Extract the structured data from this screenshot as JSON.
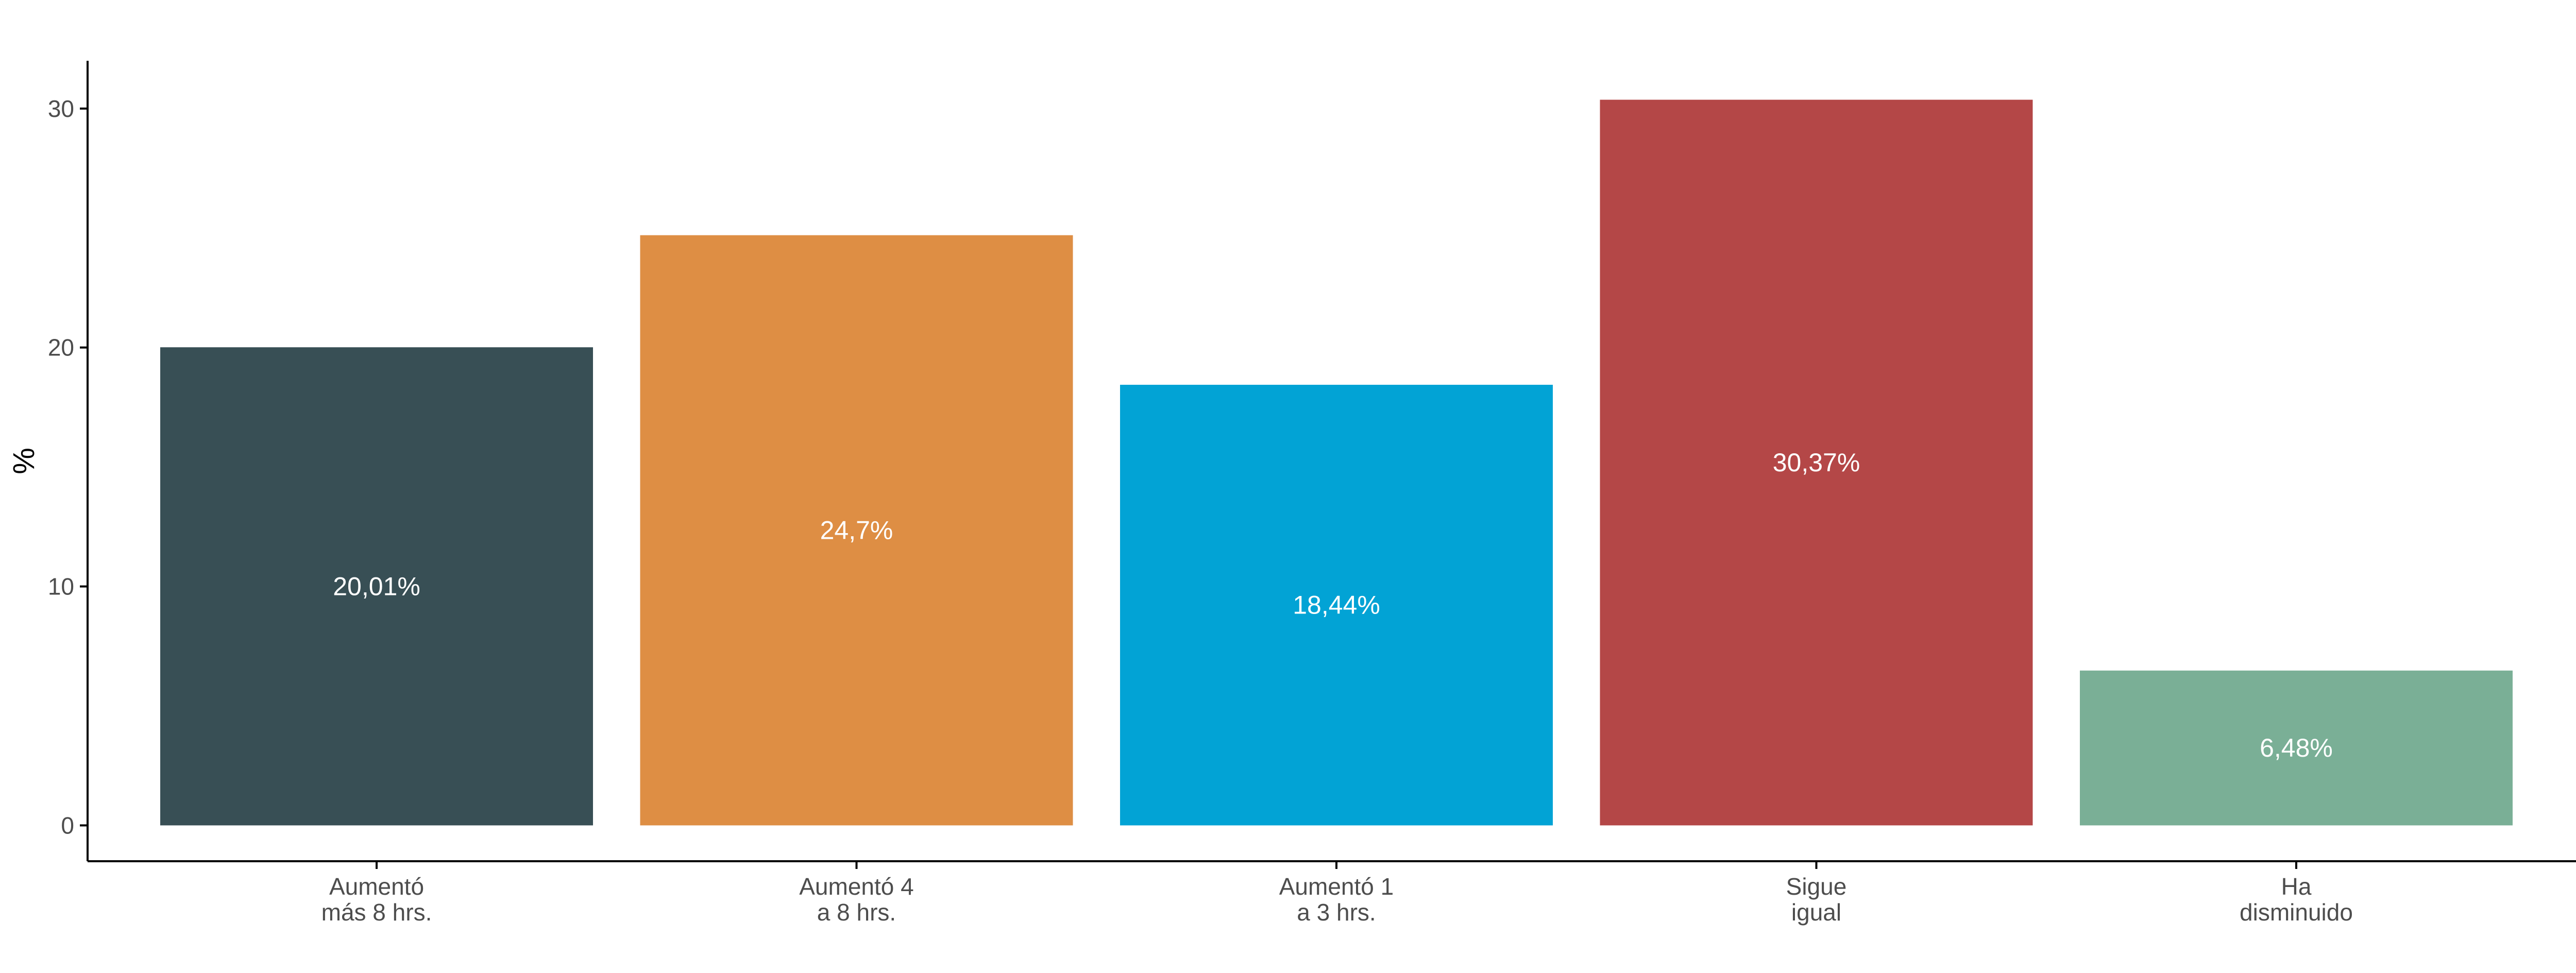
{
  "chart_data": {
    "type": "bar",
    "title": "",
    "xlabel": "",
    "ylabel": "%",
    "categories": [
      [
        "Aumentó",
        "más 8 hrs."
      ],
      [
        "Aumentó 4",
        "a 8 hrs."
      ],
      [
        "Aumentó 1",
        "a 3 hrs."
      ],
      [
        "Sigue",
        "igual"
      ],
      [
        "Ha",
        "disminuido"
      ]
    ],
    "values": [
      20.01,
      24.7,
      18.44,
      30.37,
      6.48
    ],
    "data_labels": [
      "20,01%",
      "24,7%",
      "18,44%",
      "30,37%",
      "6,48%"
    ],
    "colors": [
      "#384f55",
      "#de8e44",
      "#02a3d5",
      "#b44747",
      "#7aaf96"
    ],
    "ylim": [
      -1.5,
      32
    ],
    "yticks": [
      0,
      10,
      20,
      30
    ],
    "grid": false,
    "legend": "none"
  }
}
